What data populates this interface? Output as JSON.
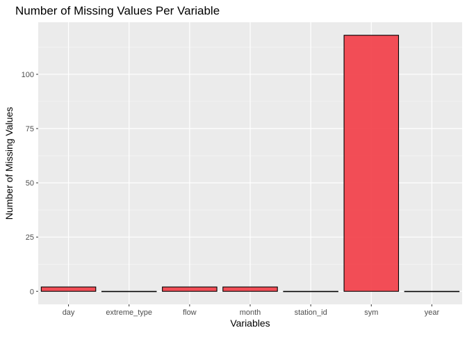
{
  "chart_data": {
    "type": "bar",
    "title": "Number of Missing Values Per Variable",
    "xlabel": "Variables",
    "ylabel": "Number of Missing Values",
    "categories": [
      "day",
      "extreme_type",
      "flow",
      "month",
      "station_id",
      "sym",
      "year"
    ],
    "values": [
      2,
      0,
      2,
      2,
      0,
      118,
      0
    ],
    "ylim": [
      -6,
      124
    ],
    "yticks": [
      0,
      25,
      50,
      75,
      100
    ],
    "grid": true,
    "legend": "none",
    "colors": {
      "bar_fill": "#f8767d",
      "bar_fill_solid": "#f2444e",
      "bar_stroke": "#000000",
      "panel_bg": "#ebebeb",
      "grid_major": "#ffffff",
      "grid_minor": "#f5f5f5",
      "tick_text": "#4d4d4d",
      "title_text": "#000000"
    }
  }
}
